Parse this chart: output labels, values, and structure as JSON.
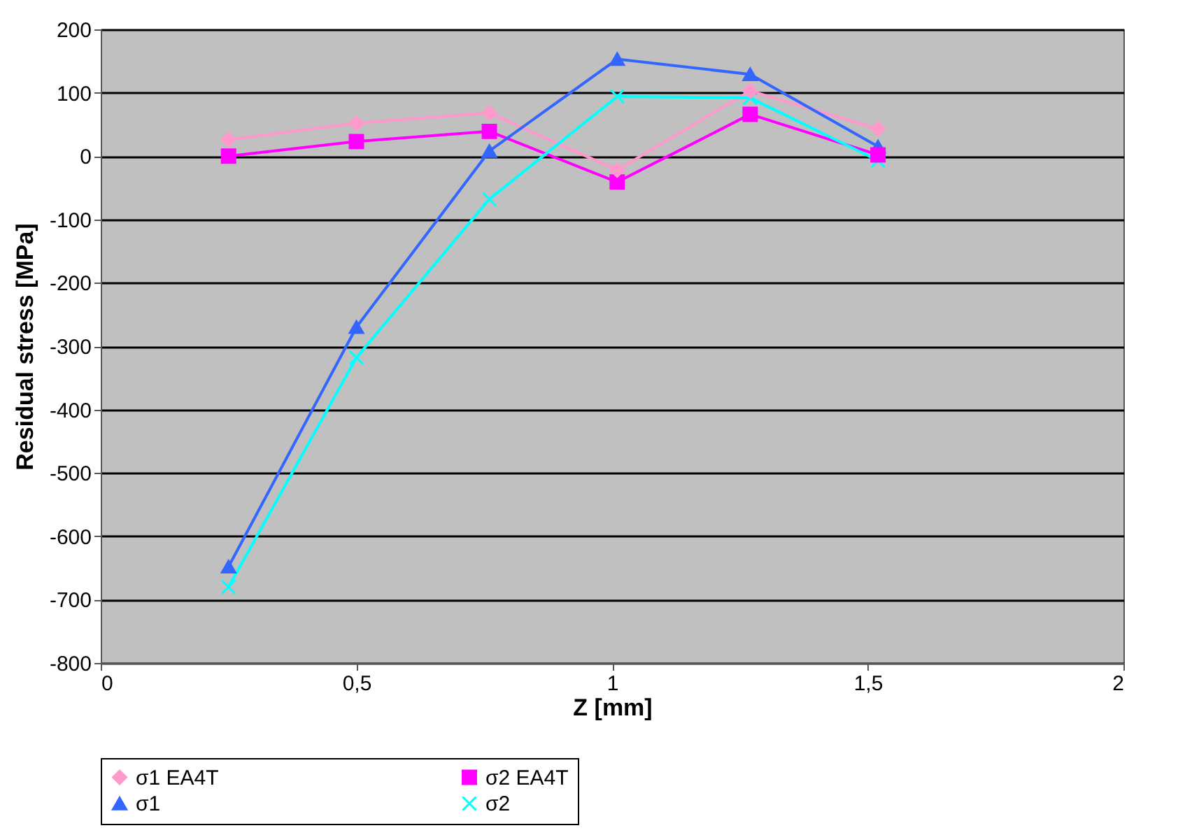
{
  "chart_data": {
    "type": "line",
    "xlabel": "Z [mm]",
    "ylabel": "Residual stress [MPa]",
    "x": [
      0.25,
      0.5,
      0.76,
      1.01,
      1.27,
      1.52
    ],
    "series": [
      {
        "name": "σ1 EA4T",
        "color": "#ff99cc",
        "marker": "diamond",
        "values": [
          26,
          52,
          68,
          -22,
          103,
          43
        ]
      },
      {
        "name": "σ2 EA4T",
        "color": "#ff00ff",
        "marker": "square",
        "values": [
          0,
          23,
          39,
          -41,
          66,
          2
        ]
      },
      {
        "name": "σ1",
        "color": "#3366ff",
        "marker": "triangle",
        "values": [
          -648,
          -270,
          8,
          153,
          129,
          15
        ]
      },
      {
        "name": "σ2",
        "color": "#00ffff",
        "marker": "cross",
        "values": [
          -680,
          -318,
          -68,
          94,
          92,
          -7
        ]
      }
    ],
    "xlim": [
      0,
      2
    ],
    "xticks": [
      0,
      {
        "value": 0.5,
        "label": "0,5"
      },
      1,
      {
        "value": 1.5,
        "label": "1,5"
      },
      2
    ],
    "ylim": [
      -800,
      200
    ],
    "yticks": [
      -800,
      -700,
      -600,
      -500,
      -400,
      -300,
      -200,
      -100,
      0,
      100,
      200
    ],
    "grid": "y",
    "legend": "bottom",
    "line_style": "solid"
  }
}
